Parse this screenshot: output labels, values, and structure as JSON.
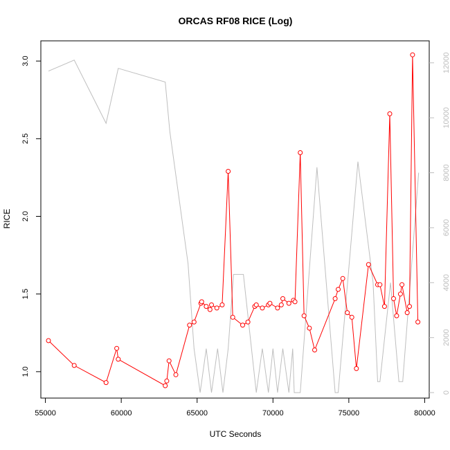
{
  "chart_data": {
    "type": "line",
    "title": "ORCAS RF08 RICE (Log)",
    "xlabel": "UTC Seconds",
    "ylabel": "RICE",
    "xlim": [
      54700,
      80300
    ],
    "ylim": [
      0.83,
      3.13
    ],
    "y2lim": [
      -200,
      12800
    ],
    "xticks": [
      55000,
      60000,
      65000,
      70000,
      75000,
      80000
    ],
    "yticks": [
      1.0,
      1.5,
      2.0,
      2.5,
      3.0
    ],
    "yticks_labels": [
      "1.0",
      "1.5",
      "2.0",
      "2.5",
      "3.0"
    ],
    "y2ticks": [
      0,
      2000,
      4000,
      6000,
      8000,
      10000,
      12000
    ],
    "grid": false,
    "colors": {
      "rice": "#ff0000",
      "altitude": "#bebebe",
      "right_axis": "#bdbdbd"
    },
    "series": [
      {
        "role": "rice",
        "axis": "left",
        "style": "line+points",
        "x": [
          55200,
          56900,
          59000,
          59700,
          59800,
          62900,
          63000,
          63150,
          63600,
          64500,
          64800,
          65250,
          65300,
          65600,
          65850,
          65950,
          66300,
          66650,
          67050,
          67350,
          68000,
          68350,
          68800,
          68900,
          69300,
          69700,
          69800,
          70300,
          70550,
          70650,
          71050,
          71350,
          71450,
          71800,
          72050,
          72400,
          72750,
          74100,
          74300,
          74600,
          74900,
          75200,
          75500,
          76300,
          76900,
          77050,
          77350,
          77700,
          77950,
          78150,
          78400,
          78500,
          78850,
          79000,
          79200,
          79550
        ],
        "y": [
          1.2,
          1.04,
          0.93,
          1.15,
          1.08,
          0.91,
          0.94,
          1.07,
          0.98,
          1.3,
          1.32,
          1.44,
          1.45,
          1.42,
          1.4,
          1.43,
          1.41,
          1.43,
          2.29,
          1.35,
          1.3,
          1.32,
          1.42,
          1.43,
          1.41,
          1.43,
          1.44,
          1.41,
          1.43,
          1.47,
          1.44,
          1.46,
          1.45,
          2.41,
          1.36,
          1.28,
          1.14,
          1.47,
          1.53,
          1.6,
          1.38,
          1.35,
          1.02,
          1.69,
          1.56,
          1.56,
          1.42,
          2.66,
          1.47,
          1.36,
          1.5,
          1.56,
          1.38,
          1.42,
          3.04,
          1.32
        ]
      },
      {
        "role": "altitude",
        "axis": "right",
        "style": "line",
        "x": [
          55200,
          56900,
          59000,
          59800,
          62900,
          63200,
          64400,
          64800,
          65200,
          65600,
          65950,
          66350,
          66700,
          67050,
          67400,
          68050,
          68900,
          69300,
          69700,
          70000,
          70300,
          70650,
          71050,
          71300,
          71400,
          71800,
          72900,
          74100,
          74300,
          75600,
          76600,
          76900,
          77050,
          77750,
          78300,
          78550,
          79600
        ],
        "y": [
          11700,
          12100,
          9800,
          11800,
          11300,
          9500,
          4700,
          1600,
          0,
          1600,
          0,
          1600,
          0,
          1600,
          4300,
          4300,
          0,
          1600,
          0,
          1600,
          0,
          1600,
          0,
          1600,
          0,
          0,
          8200,
          0,
          0,
          8400,
          4000,
          400,
          400,
          4000,
          400,
          400,
          8000
        ]
      }
    ]
  }
}
